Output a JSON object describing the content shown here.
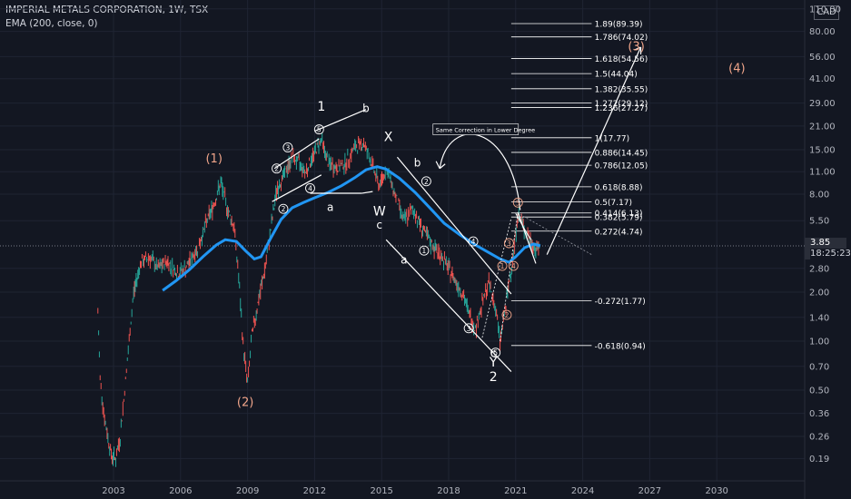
{
  "header": {
    "title": "IMPERIAL METALS CORPORATION, 1W, TSX",
    "indicator": "EMA (200, close, 0)"
  },
  "currency_label": "CAD",
  "last_price": "3.85",
  "countdown": "18:25:23",
  "chart_data": {
    "type": "line",
    "x_axis_ticks": [
      "2003",
      "2006",
      "2009",
      "2012",
      "2015",
      "2018",
      "2021",
      "2024",
      "2027",
      "2030"
    ],
    "y_axis_scale": "log",
    "y_axis_ticks": [
      0.19,
      0.26,
      0.36,
      0.5,
      0.7,
      1.0,
      1.4,
      2.0,
      2.8,
      3.85,
      5.5,
      8.0,
      11.0,
      15.0,
      21.0,
      29.0,
      41.0,
      56.0,
      80.0,
      110.0
    ],
    "y_axis_tick_labels": [
      "0.19",
      "0.26",
      "0.36",
      "0.50",
      "0.70",
      "1.00",
      "1.40",
      "2.00",
      "2.80",
      "",
      "5.50",
      "8.00",
      "11.00",
      "15.00",
      "21.00",
      "29.00",
      "41.00",
      "56.00",
      "80.00",
      "110.00"
    ],
    "colors": {
      "up": "#26a69a",
      "down": "#ef5350",
      "ema": "#2196f3",
      "annotation": "#ffffff",
      "wave_orange": "#f0a58a"
    },
    "price_path": [
      [
        2002.3,
        1.5
      ],
      [
        2002.4,
        0.6
      ],
      [
        2002.6,
        0.33
      ],
      [
        2002.9,
        0.2
      ],
      [
        2003.1,
        0.19
      ],
      [
        2003.3,
        0.26
      ],
      [
        2003.5,
        0.5
      ],
      [
        2003.7,
        1.0
      ],
      [
        2003.9,
        2.0
      ],
      [
        2004.2,
        3.0
      ],
      [
        2004.6,
        3.3
      ],
      [
        2005.0,
        2.8
      ],
      [
        2005.4,
        3.1
      ],
      [
        2005.9,
        2.6
      ],
      [
        2006.3,
        2.9
      ],
      [
        2006.8,
        3.8
      ],
      [
        2007.2,
        5.6
      ],
      [
        2007.5,
        7.0
      ],
      [
        2007.8,
        9.4
      ],
      [
        2008.1,
        6.5
      ],
      [
        2008.4,
        5.0
      ],
      [
        2008.6,
        2.5
      ],
      [
        2008.8,
        0.95
      ],
      [
        2009.0,
        0.55
      ],
      [
        2009.2,
        1.1
      ],
      [
        2009.5,
        1.8
      ],
      [
        2009.8,
        2.9
      ],
      [
        2010.0,
        4.5
      ],
      [
        2010.3,
        8.5
      ],
      [
        2010.7,
        11.0
      ],
      [
        2011.0,
        13.5
      ],
      [
        2011.3,
        12.5
      ],
      [
        2011.6,
        11.0
      ],
      [
        2012.0,
        14.5
      ],
      [
        2012.3,
        17.5
      ],
      [
        2012.6,
        12.5
      ],
      [
        2013.0,
        11.5
      ],
      [
        2013.4,
        12.5
      ],
      [
        2013.8,
        15.5
      ],
      [
        2014.2,
        16.5
      ],
      [
        2014.5,
        13.0
      ],
      [
        2014.9,
        9.0
      ],
      [
        2015.2,
        11.5
      ],
      [
        2015.6,
        8.0
      ],
      [
        2016.0,
        5.5
      ],
      [
        2016.4,
        6.5
      ],
      [
        2016.8,
        5.0
      ],
      [
        2017.2,
        4.0
      ],
      [
        2017.7,
        3.3
      ],
      [
        2018.2,
        2.5
      ],
      [
        2018.6,
        2.0
      ],
      [
        2018.9,
        1.5
      ],
      [
        2019.2,
        1.2
      ],
      [
        2019.5,
        1.7
      ],
      [
        2019.8,
        2.3
      ],
      [
        2020.1,
        1.6
      ],
      [
        2020.3,
        1.0
      ],
      [
        2020.6,
        1.8
      ],
      [
        2020.9,
        3.5
      ],
      [
        2021.1,
        6.0
      ],
      [
        2021.3,
        5.2
      ],
      [
        2021.5,
        4.6
      ],
      [
        2021.7,
        4.0
      ],
      [
        2021.9,
        3.7
      ],
      [
        2022.1,
        3.85
      ]
    ],
    "ema_path": [
      [
        2005.2,
        2.05
      ],
      [
        2005.8,
        2.35
      ],
      [
        2006.4,
        2.75
      ],
      [
        2007.0,
        3.3
      ],
      [
        2007.6,
        3.9
      ],
      [
        2008.0,
        4.2
      ],
      [
        2008.5,
        4.1
      ],
      [
        2008.9,
        3.6
      ],
      [
        2009.3,
        3.2
      ],
      [
        2009.6,
        3.3
      ],
      [
        2010.0,
        4.2
      ],
      [
        2010.5,
        5.6
      ],
      [
        2011.0,
        6.6
      ],
      [
        2011.5,
        7.1
      ],
      [
        2012.0,
        7.6
      ],
      [
        2012.6,
        8.2
      ],
      [
        2013.2,
        9.0
      ],
      [
        2013.8,
        10.1
      ],
      [
        2014.3,
        11.3
      ],
      [
        2014.8,
        11.8
      ],
      [
        2015.2,
        11.4
      ],
      [
        2015.8,
        10.0
      ],
      [
        2016.5,
        8.2
      ],
      [
        2017.2,
        6.5
      ],
      [
        2017.8,
        5.3
      ],
      [
        2018.5,
        4.5
      ],
      [
        2019.2,
        3.9
      ],
      [
        2019.8,
        3.5
      ],
      [
        2020.3,
        3.2
      ],
      [
        2020.7,
        3.05
      ],
      [
        2021.0,
        3.3
      ],
      [
        2021.4,
        3.75
      ],
      [
        2021.8,
        3.95
      ],
      [
        2022.1,
        3.85
      ]
    ],
    "fib_levels": [
      {
        "label": "1.89(89.39)",
        "value": 89.39
      },
      {
        "label": "1.786(74.02)",
        "value": 74.02
      },
      {
        "label": "1.618(54.56)",
        "value": 54.56
      },
      {
        "label": "1.5(44.04)",
        "value": 44.04
      },
      {
        "label": "1.382(35.55)",
        "value": 35.55
      },
      {
        "label": "1.272(29.12)",
        "value": 29.12
      },
      {
        "label": "1.236(27.27)",
        "value": 27.27
      },
      {
        "label": "1(17.77)",
        "value": 17.77
      },
      {
        "label": "0.886(14.45)",
        "value": 14.45
      },
      {
        "label": "0.786(12.05)",
        "value": 12.05
      },
      {
        "label": "0.618(8.88)",
        "value": 8.88
      },
      {
        "label": "0.5(7.17)",
        "value": 7.17
      },
      {
        "label": "0.414(6.13)",
        "value": 6.13
      },
      {
        "label": "0.382(5.79)",
        "value": 5.79
      },
      {
        "label": "0.272(4.74)",
        "value": 4.74
      },
      {
        "label": "-0.272(1.77)",
        "value": 1.77
      },
      {
        "label": "-0.618(0.94)",
        "value": 0.94
      }
    ],
    "annotation_note": "Same Correction in Lower Degree",
    "wave_labels": [
      {
        "text": "(1)",
        "x": 2007.5,
        "y": 12.5,
        "style": "orange-major"
      },
      {
        "text": "(2)",
        "x": 2008.9,
        "y": 0.4,
        "style": "orange-major"
      },
      {
        "text": "(3)",
        "x": 2026.4,
        "y": 61,
        "style": "orange-major"
      },
      {
        "text": "(4)",
        "x": 2030.9,
        "y": 45,
        "style": "orange-major"
      },
      {
        "text": "1",
        "x": 2012.3,
        "y": 26,
        "style": "white-large"
      },
      {
        "text": "b",
        "x": 2014.3,
        "y": 25.5,
        "style": "white"
      },
      {
        "text": "X",
        "x": 2015.3,
        "y": 17,
        "style": "white-large"
      },
      {
        "text": "a",
        "x": 2012.7,
        "y": 6.3,
        "style": "white"
      },
      {
        "text": "W",
        "x": 2014.9,
        "y": 5.9,
        "style": "white-large"
      },
      {
        "text": "c",
        "x": 2014.9,
        "y": 4.9,
        "style": "white"
      },
      {
        "text": "b",
        "x": 2016.6,
        "y": 11.8,
        "style": "white"
      },
      {
        "text": "a",
        "x": 2016.0,
        "y": 3.0,
        "style": "white"
      },
      {
        "text": "c",
        "x": 2020.0,
        "y": 0.8,
        "style": "white"
      },
      {
        "text": "Y",
        "x": 2020.0,
        "y": 0.7,
        "style": "white-large"
      },
      {
        "text": "2",
        "x": 2020.0,
        "y": 0.57,
        "style": "white-large"
      }
    ],
    "circled_labels": [
      {
        "text": "3",
        "x": 2010.8,
        "y": 15.5,
        "style": "white"
      },
      {
        "text": "5",
        "x": 2012.2,
        "y": 20,
        "style": "white"
      },
      {
        "text": "2",
        "x": 2010.3,
        "y": 11.5,
        "style": "white"
      },
      {
        "text": "4",
        "x": 2011.8,
        "y": 8.7,
        "style": "white"
      },
      {
        "text": "2",
        "x": 2010.6,
        "y": 6.5,
        "style": "white"
      },
      {
        "text": "2",
        "x": 2017.0,
        "y": 9.6,
        "style": "white"
      },
      {
        "text": "1",
        "x": 2016.9,
        "y": 3.6,
        "style": "white"
      },
      {
        "text": "4",
        "x": 2019.1,
        "y": 4.1,
        "style": "white"
      },
      {
        "text": "3",
        "x": 2018.9,
        "y": 1.2,
        "style": "white"
      },
      {
        "text": "5",
        "x": 2020.1,
        "y": 0.85,
        "style": "white"
      },
      {
        "text": "1",
        "x": 2020.4,
        "y": 2.9,
        "style": "orange"
      },
      {
        "text": "3",
        "x": 2020.7,
        "y": 4.0,
        "style": "orange"
      },
      {
        "text": "5",
        "x": 2021.1,
        "y": 7.1,
        "style": "orange"
      },
      {
        "text": "4",
        "x": 2020.9,
        "y": 2.9,
        "style": "orange"
      },
      {
        "text": "2",
        "x": 2020.6,
        "y": 1.45,
        "style": "orange"
      }
    ]
  }
}
